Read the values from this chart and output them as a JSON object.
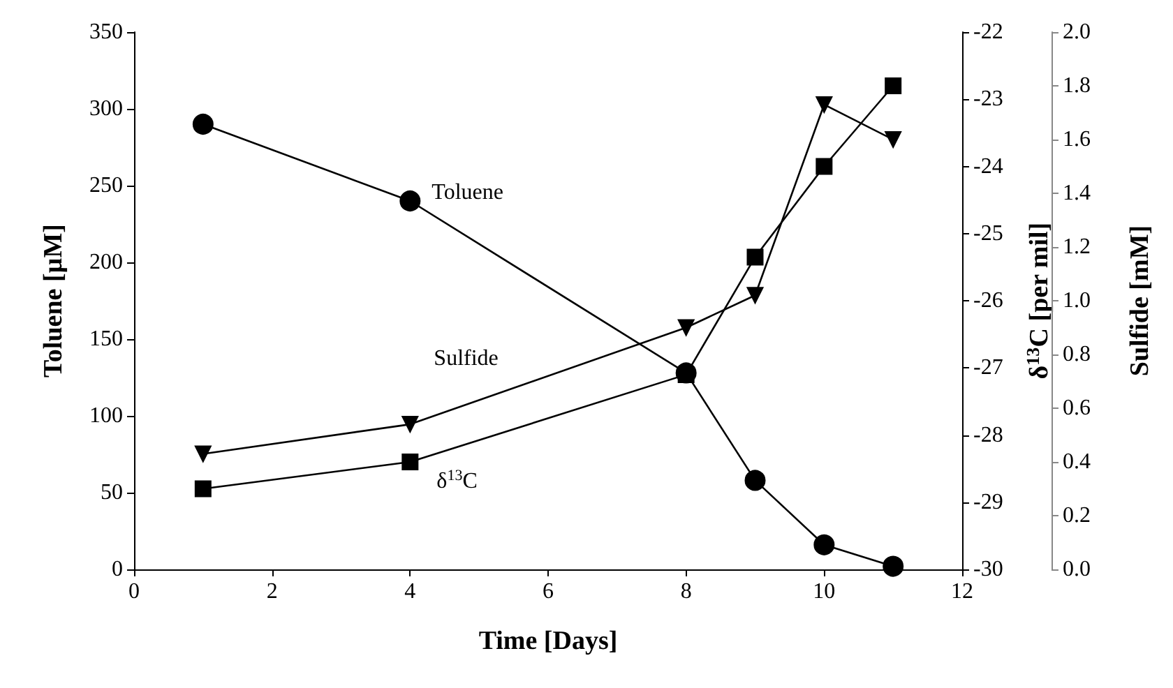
{
  "chart_data": {
    "type": "line",
    "xlabel": "Time [Days]",
    "ylabel": "Toluene [µM]",
    "y2label": "δ$^{13}$C [per mil]",
    "y3label": "Sulfide [mM]",
    "x": [
      1,
      4,
      8,
      9,
      10,
      11
    ],
    "xlim": [
      0,
      12
    ],
    "xticks": [
      0,
      2,
      4,
      6,
      8,
      10,
      12
    ],
    "ylim": [
      0,
      350
    ],
    "yticks": [
      0,
      50,
      100,
      150,
      200,
      250,
      300,
      350
    ],
    "y2lim": [
      -30,
      -22
    ],
    "y2ticks": [
      -30,
      -29,
      -28,
      -27,
      -26,
      -25,
      -24,
      -23,
      -22
    ],
    "y3lim": [
      0,
      2
    ],
    "y3ticks": [
      {
        "value": 0,
        "label": "0.0"
      },
      {
        "value": 0.2,
        "label": "0.2"
      },
      {
        "value": 0.4,
        "label": "0.4"
      },
      {
        "value": 0.6,
        "label": "0.6"
      },
      {
        "value": 0.8,
        "label": "0.8"
      },
      {
        "value": 1,
        "label": "1.0"
      },
      {
        "value": 1.2,
        "label": "1.2"
      },
      {
        "value": 1.4,
        "label": "1.4"
      },
      {
        "value": 1.6,
        "label": "1.6"
      },
      {
        "value": 1.8,
        "label": "1.8"
      },
      {
        "value": 2,
        "label": "2.0"
      }
    ],
    "grid": false,
    "legend": false,
    "line_style": "solid",
    "series": [
      {
        "name": "Toluene",
        "color": "#000000",
        "marker": "circle",
        "values": [
          290,
          240,
          128,
          58,
          16,
          2
        ]
      },
      {
        "name": "Sulfide",
        "color": "#000000",
        "marker": "triangle",
        "axis": "y3",
        "values": [
          0.43,
          0.54,
          0.9,
          1.02,
          1.73,
          1.6
        ]
      },
      {
        "name": "δ$^{13}$C",
        "color": "#000000",
        "marker": "square",
        "axis": "y2",
        "values": [
          -28.8,
          -28.4,
          -27.1,
          -25.35,
          -24.0,
          -22.8
        ]
      }
    ]
  }
}
